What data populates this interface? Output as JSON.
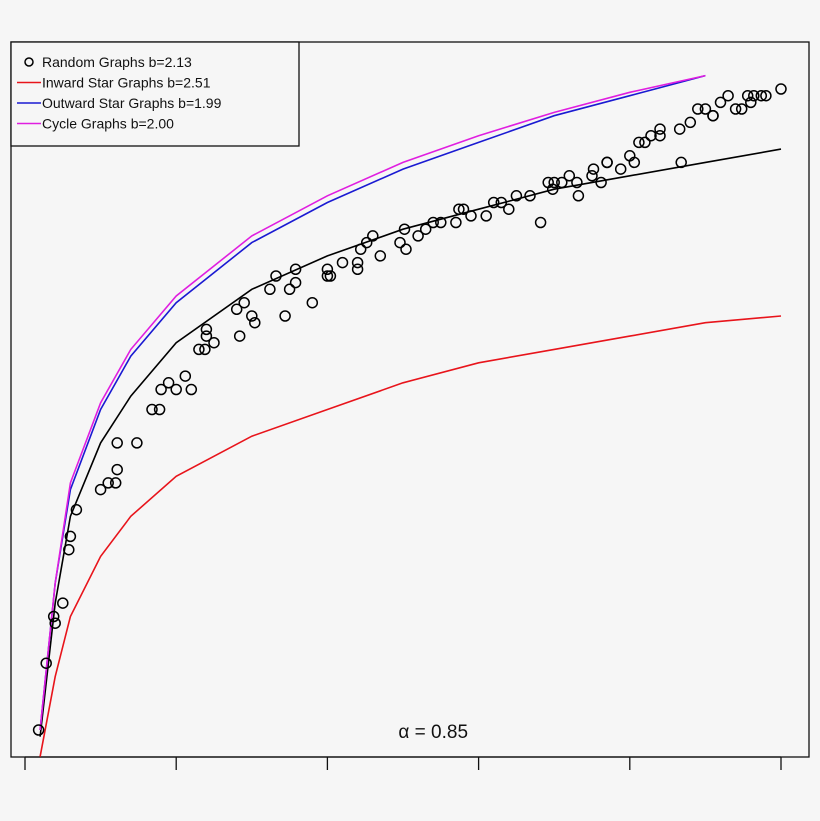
{
  "chart_data": {
    "type": "scatter",
    "annotation": "α = 0.85",
    "xlim": [
      -0.1,
      5.1
    ],
    "ylim": [
      0.0,
      1.0
    ],
    "xticks": [
      0,
      1,
      2,
      3,
      4,
      5
    ],
    "tick_labels_shown": false,
    "legend_position": "top-left",
    "grid": false,
    "series": [
      {
        "name": "Random Graphs b=2.13",
        "kind": "points",
        "color": "#000000",
        "marker": "circle-open",
        "x": [
          0.09,
          0.14,
          0.19,
          0.2,
          0.25,
          0.29,
          0.3,
          0.34,
          0.5,
          0.55,
          0.6,
          0.61,
          0.61,
          0.74,
          0.84,
          0.89,
          0.9,
          0.95,
          1.0,
          1.06,
          1.1,
          1.15,
          1.19,
          1.2,
          1.2,
          1.25,
          1.4,
          1.42,
          1.45,
          1.5,
          1.52,
          1.62,
          1.66,
          1.72,
          1.75,
          1.79,
          1.79,
          1.9,
          2.0,
          2.0,
          2.02,
          2.1,
          2.2,
          2.2,
          2.22,
          2.26,
          2.3,
          2.35,
          2.48,
          2.51,
          2.52,
          2.6,
          2.65,
          2.7,
          2.75,
          2.85,
          2.87,
          2.9,
          2.95,
          3.05,
          3.1,
          3.15,
          3.2,
          3.25,
          3.34,
          3.41,
          3.46,
          3.49,
          3.5,
          3.55,
          3.6,
          3.65,
          3.66,
          3.75,
          3.76,
          3.81,
          3.85,
          3.85,
          3.94,
          4.0,
          4.03,
          4.06,
          4.1,
          4.14,
          4.2,
          4.2,
          4.33,
          4.34,
          4.4,
          4.45,
          4.5,
          4.55,
          4.55,
          4.6,
          4.65,
          4.7,
          4.74,
          4.78,
          4.8,
          4.82,
          4.87,
          4.9,
          5.0
        ],
        "y": [
          0.04,
          0.14,
          0.21,
          0.2,
          0.23,
          0.31,
          0.33,
          0.37,
          0.4,
          0.41,
          0.41,
          0.43,
          0.47,
          0.47,
          0.52,
          0.52,
          0.55,
          0.56,
          0.55,
          0.57,
          0.55,
          0.61,
          0.61,
          0.63,
          0.64,
          0.62,
          0.67,
          0.63,
          0.68,
          0.66,
          0.65,
          0.7,
          0.72,
          0.66,
          0.7,
          0.71,
          0.73,
          0.68,
          0.72,
          0.73,
          0.72,
          0.74,
          0.74,
          0.73,
          0.76,
          0.77,
          0.78,
          0.75,
          0.77,
          0.79,
          0.76,
          0.78,
          0.79,
          0.8,
          0.8,
          0.8,
          0.82,
          0.82,
          0.81,
          0.81,
          0.83,
          0.83,
          0.82,
          0.84,
          0.84,
          0.8,
          0.86,
          0.85,
          0.86,
          0.86,
          0.87,
          0.86,
          0.84,
          0.87,
          0.88,
          0.86,
          0.89,
          0.89,
          0.88,
          0.9,
          0.89,
          0.92,
          0.92,
          0.93,
          0.93,
          0.94,
          0.94,
          0.89,
          0.95,
          0.97,
          0.97,
          0.96,
          0.96,
          0.98,
          0.99,
          0.97,
          0.97,
          0.99,
          0.98,
          0.99,
          0.99,
          0.99,
          1.0
        ]
      },
      {
        "name": "",
        "kind": "line",
        "color": "#000000",
        "x": [
          0.1,
          0.2,
          0.3,
          0.5,
          0.7,
          1.0,
          1.5,
          2.0,
          2.5,
          3.0,
          3.5,
          4.0,
          4.5,
          5.0
        ],
        "y": [
          0.03,
          0.23,
          0.36,
          0.47,
          0.54,
          0.62,
          0.7,
          0.75,
          0.79,
          0.82,
          0.85,
          0.87,
          0.89,
          0.91
        ]
      },
      {
        "name": "Inward Star Graphs b=2.51",
        "kind": "line",
        "color": "#e8141b",
        "x": [
          0.1,
          0.2,
          0.3,
          0.5,
          0.7,
          1.0,
          1.5,
          2.0,
          2.5,
          3.0,
          3.5,
          4.0,
          4.5,
          5.0
        ],
        "y": [
          0.0,
          0.12,
          0.21,
          0.3,
          0.36,
          0.42,
          0.48,
          0.52,
          0.56,
          0.59,
          0.61,
          0.63,
          0.65,
          0.66
        ]
      },
      {
        "name": "Outward Star Graphs b=1.99",
        "kind": "line",
        "color": "#1a1ad2",
        "x": [
          0.1,
          0.2,
          0.3,
          0.5,
          0.7,
          1.0,
          1.5,
          2.0,
          2.5,
          3.0,
          3.5,
          4.0,
          4.5
        ],
        "y": [
          0.04,
          0.26,
          0.4,
          0.52,
          0.6,
          0.68,
          0.77,
          0.83,
          0.88,
          0.92,
          0.96,
          0.99,
          1.02
        ]
      },
      {
        "name": "Cycle Graphs b=2.00",
        "kind": "line",
        "color": "#e01ee0",
        "x": [
          0.1,
          0.2,
          0.3,
          0.5,
          0.7,
          1.0,
          1.5,
          2.0,
          2.5,
          3.0,
          3.5,
          4.0,
          4.5
        ],
        "y": [
          0.04,
          0.26,
          0.41,
          0.53,
          0.61,
          0.69,
          0.78,
          0.84,
          0.89,
          0.93,
          0.965,
          0.995,
          1.02
        ]
      }
    ]
  }
}
